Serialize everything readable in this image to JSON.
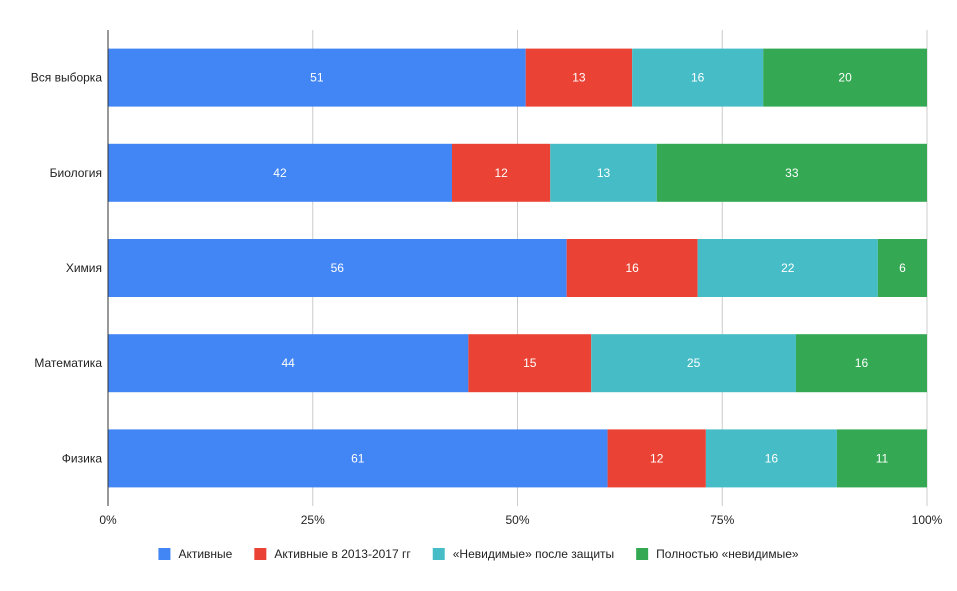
{
  "chart_data": {
    "type": "bar",
    "orientation": "horizontal",
    "stacked": "percent",
    "categories": [
      "Вся выборка",
      "Биология",
      "Химия",
      "Математика",
      "Физика"
    ],
    "series": [
      {
        "name": "Активные",
        "color": "#4285f4",
        "values": [
          51,
          42,
          56,
          44,
          61
        ]
      },
      {
        "name": "Активные в 2013-2017 гг",
        "color": "#ea4335",
        "values": [
          13,
          12,
          16,
          15,
          12
        ]
      },
      {
        "name": "«Невидимые» после защиты",
        "color": "#46bdc6",
        "values": [
          16,
          13,
          22,
          25,
          16
        ]
      },
      {
        "name": "Полностью «невидимые»",
        "color": "#34a853",
        "values": [
          20,
          33,
          6,
          16,
          11
        ]
      }
    ],
    "x_ticks": [
      "0%",
      "25%",
      "50%",
      "75%",
      "100%"
    ],
    "xlim": [
      0,
      100
    ],
    "grid": true,
    "legend_position": "bottom",
    "title": "",
    "xlabel": "",
    "ylabel": ""
  }
}
